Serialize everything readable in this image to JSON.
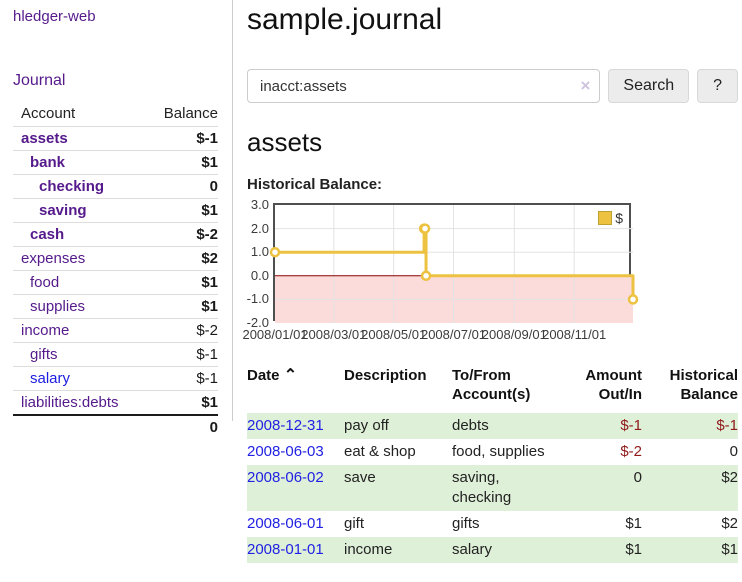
{
  "app": {
    "brand": "hledger-web",
    "nav_journal": "Journal"
  },
  "sidebar": {
    "table": {
      "col_account": "Account",
      "col_balance": "Balance",
      "rows": [
        {
          "label": "assets",
          "balance": "$-1"
        },
        {
          "label": "bank",
          "balance": "$1"
        },
        {
          "label": "checking",
          "balance": "0"
        },
        {
          "label": "saving",
          "balance": "$1"
        },
        {
          "label": "cash",
          "balance": "$-2"
        },
        {
          "label": "expenses",
          "balance": "$2"
        },
        {
          "label": "food",
          "balance": "$1"
        },
        {
          "label": "supplies",
          "balance": "$1"
        },
        {
          "label": "income",
          "balance": "$-2"
        },
        {
          "label": "gifts",
          "balance": "$-1"
        },
        {
          "label": "salary",
          "balance": "$-1"
        },
        {
          "label": "liabilities:debts",
          "balance": "$1"
        }
      ],
      "total": "0"
    }
  },
  "main": {
    "title": "sample.journal",
    "search": {
      "value": "inacct:assets",
      "clear_icon": "×",
      "submit_label": "Search",
      "help_label": "?"
    },
    "heading": "assets",
    "chart_label": "Historical Balance:",
    "register": {
      "headers": {
        "date": "Date",
        "sort_asc_icon": "⌃",
        "description": "Description",
        "account": "To/From Account(s)",
        "amount": "Amount Out/In",
        "balance": "Historical Balance"
      },
      "rows": [
        {
          "date": "2008-12-31",
          "description": "pay off",
          "account": "debts",
          "amount": "$-1",
          "balance": "$-1"
        },
        {
          "date": "2008-06-03",
          "description": "eat & shop",
          "account": "food, supplies",
          "amount": "$-2",
          "balance": "0"
        },
        {
          "date": "2008-06-02",
          "description": "save",
          "account": "saving, checking",
          "amount": "0",
          "balance": "$2"
        },
        {
          "date": "2008-06-01",
          "description": "gift",
          "account": "gifts",
          "amount": "$1",
          "balance": "$2"
        },
        {
          "date": "2008-01-01",
          "description": "income",
          "account": "salary",
          "amount": "$1",
          "balance": "$1"
        }
      ]
    }
  },
  "chart_data": {
    "type": "line",
    "title": "Historical Balance:",
    "step": true,
    "series": [
      {
        "name": "$",
        "color": "#edc240",
        "points": [
          [
            "2008-01-01",
            1
          ],
          [
            "2008-06-01",
            2
          ],
          [
            "2008-06-02",
            2
          ],
          [
            "2008-06-03",
            0
          ],
          [
            "2008-12-31",
            -1
          ]
        ]
      }
    ],
    "x_range": [
      "2008-01-01",
      "2008-12-31"
    ],
    "ylim": [
      -2,
      3
    ],
    "yticks": [
      "3.0",
      "2.0",
      "1.0",
      "0.0",
      "-1.0",
      "-2.0"
    ],
    "xticks": [
      "2008/01/01",
      "2008/03/01",
      "2008/05/01",
      "2008/07/01",
      "2008/09/01",
      "2008/11/01"
    ],
    "legend_position": "top-right",
    "grid": true,
    "zero_line_color": "#8b0000",
    "negative_region_color": "#fcdbdb",
    "grid_color": "#e3e3e3"
  },
  "colors": {
    "link_purple": "#551a8b",
    "link_blue": "#1d1de0",
    "negative_strong": "#8f1a1a",
    "negative_faded": "#c07575",
    "striped_row_green": "#dff0d8",
    "series_gold": "#edc240"
  }
}
